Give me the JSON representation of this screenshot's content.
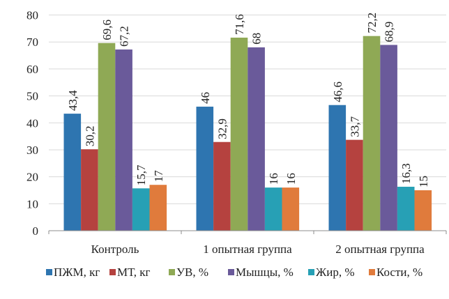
{
  "chart_data": {
    "type": "bar",
    "title": "",
    "xlabel": "",
    "ylabel": "",
    "ylim": [
      0,
      80
    ],
    "yticks": [
      0,
      10,
      20,
      30,
      40,
      50,
      60,
      70,
      80
    ],
    "grid": true,
    "legend_position": "bottom",
    "categories": [
      "Контроль",
      "1 опытная группа",
      "2 опытная группа"
    ],
    "series": [
      {
        "name": "ПЖМ, кг",
        "color": "#2e75b0",
        "values": [
          43.4,
          46,
          46.6
        ],
        "labels": [
          "43,4",
          "46",
          "46,6"
        ]
      },
      {
        "name": "МТ, кг",
        "color": "#b5423f",
        "values": [
          30.2,
          32.9,
          33.7
        ],
        "labels": [
          "30,2",
          "32,9",
          "33,7"
        ]
      },
      {
        "name": "УВ, %",
        "color": "#8fa955",
        "values": [
          69.6,
          71.6,
          72.2
        ],
        "labels": [
          "69,6",
          "71,6",
          "72,2"
        ]
      },
      {
        "name": "Мышцы, %",
        "color": "#6a5a9a",
        "values": [
          67.2,
          68,
          68.9
        ],
        "labels": [
          "67,2",
          "68",
          "68,9"
        ]
      },
      {
        "name": "Жир, %",
        "color": "#27a0b5",
        "values": [
          15.7,
          16,
          16.3
        ],
        "labels": [
          "15,7",
          "16",
          "16,3"
        ]
      },
      {
        "name": "Кости, %",
        "color": "#e07b3c",
        "values": [
          17,
          16,
          15
        ],
        "labels": [
          "17",
          "16",
          "15"
        ]
      }
    ]
  }
}
